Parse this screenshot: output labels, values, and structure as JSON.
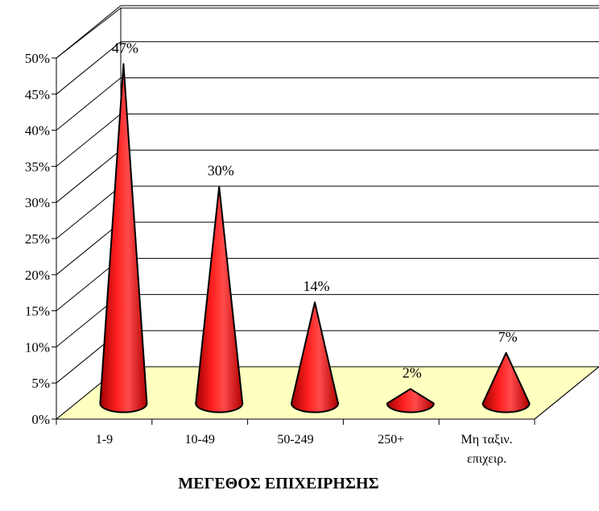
{
  "chart_data": {
    "type": "bar",
    "style": "3d-cone",
    "title": "",
    "xlabel": "ΜΕΓΕΘΟΣ ΕΠΙΧΕΙΡΗΣΗΣ",
    "ylabel": "",
    "categories": [
      {
        "lines": [
          "1-9"
        ]
      },
      {
        "lines": [
          "10-49"
        ]
      },
      {
        "lines": [
          "50-249"
        ]
      },
      {
        "lines": [
          "250+"
        ]
      },
      {
        "lines": [
          "Μη ταξιν.",
          "επιχειρ."
        ]
      }
    ],
    "values": [
      47,
      30,
      14,
      2,
      7
    ],
    "data_labels": [
      "47%",
      "30%",
      "14%",
      "2%",
      "7%"
    ],
    "ylim": [
      0,
      50
    ],
    "yticks": [
      {
        "value": 0,
        "label": "0%"
      },
      {
        "value": 5,
        "label": "5%"
      },
      {
        "value": 10,
        "label": "10%"
      },
      {
        "value": 15,
        "label": "15%"
      },
      {
        "value": 20,
        "label": "20%"
      },
      {
        "value": 25,
        "label": "25%"
      },
      {
        "value": 30,
        "label": "30%"
      },
      {
        "value": 35,
        "label": "35%"
      },
      {
        "value": 40,
        "label": "40%"
      },
      {
        "value": 45,
        "label": "45%"
      },
      {
        "value": 50,
        "label": "50%"
      }
    ],
    "grid": true,
    "legend": "none",
    "colors": {
      "bar": "#ff0000",
      "bar_dark": "#c00000",
      "floor": "#ffffc0",
      "grid": "#000000",
      "outline": "#000000"
    }
  }
}
